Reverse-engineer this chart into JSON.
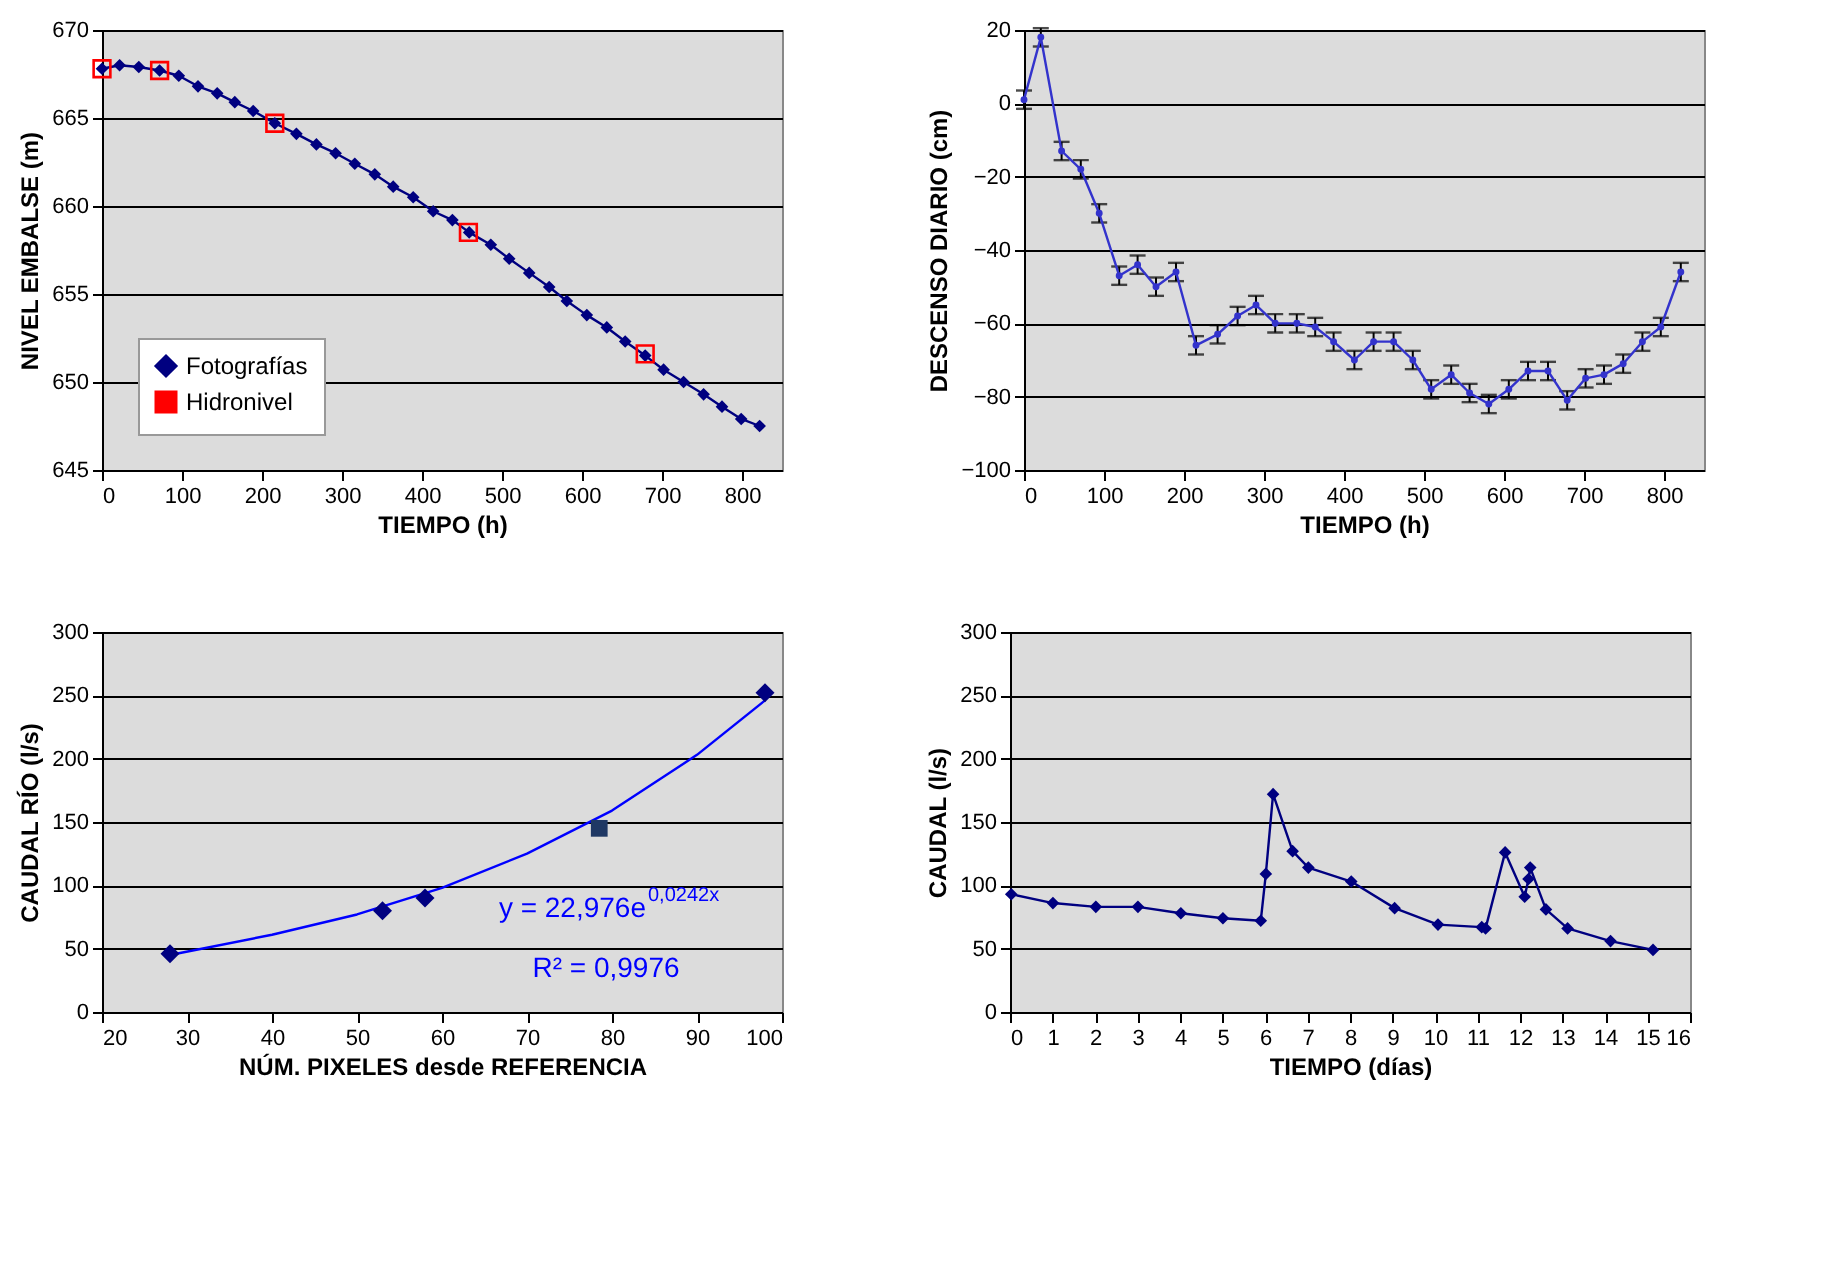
{
  "chart_data": [
    {
      "type": "line",
      "xlabel": "TIEMPO (h)",
      "ylabel": "NIVEL EMBALSE (m)",
      "xlim": [
        0,
        850
      ],
      "xticks": [
        0,
        100,
        200,
        300,
        400,
        500,
        600,
        700,
        800
      ],
      "ylim": [
        645,
        670
      ],
      "yticks": [
        645,
        650,
        655,
        660,
        665,
        670
      ],
      "grid": "y",
      "legend": "bottom left",
      "series": [
        {
          "name": "Fotografías",
          "color": "#000080",
          "marker": "diamond",
          "x": [
            0,
            22,
            46,
            72,
            96,
            120,
            144,
            166,
            189,
            216,
            243,
            268,
            292,
            316,
            341,
            364,
            389,
            414,
            438,
            459,
            486,
            509,
            534,
            559,
            581,
            606,
            631,
            654,
            679,
            702,
            727,
            752,
            775,
            799,
            822
          ],
          "values": [
            667.8,
            668.0,
            667.9,
            667.7,
            667.4,
            666.8,
            666.4,
            665.9,
            665.4,
            664.7,
            664.1,
            663.5,
            663.0,
            662.4,
            661.8,
            661.1,
            660.5,
            659.7,
            659.2,
            658.5,
            657.8,
            657.0,
            656.2,
            655.4,
            654.6,
            653.8,
            653.1,
            652.3,
            651.5,
            650.7,
            650.0,
            649.3,
            648.6,
            647.9,
            647.5
          ]
        },
        {
          "name": "Hidronivel",
          "type": "scatter",
          "color": "#ff0000",
          "marker": "square",
          "x": [
            0,
            72,
            216,
            458,
            679
          ],
          "values": [
            667.8,
            667.7,
            664.7,
            658.5,
            651.6
          ]
        }
      ]
    },
    {
      "type": "line",
      "xlabel": "TIEMPO (h)",
      "ylabel": "DESCENSO DIARIO (cm)",
      "xlim": [
        0,
        850
      ],
      "xticks": [
        0,
        100,
        200,
        300,
        400,
        500,
        600,
        700,
        800
      ],
      "ylim": [
        -100,
        20
      ],
      "yticks": [
        -100,
        -80,
        -60,
        -40,
        -20,
        0,
        20
      ],
      "grid": "y",
      "series": [
        {
          "color": "#3333cc",
          "marker": "circle",
          "x": [
            0,
            21,
            47,
            71,
            94,
            119,
            142,
            165,
            190,
            215,
            242,
            267,
            290,
            314,
            341,
            364,
            387,
            413,
            437,
            462,
            486,
            509,
            534,
            557,
            581,
            606,
            630,
            655,
            679,
            702,
            725,
            749,
            773,
            796,
            821
          ],
          "values": [
            1,
            18,
            -13,
            -18,
            -30,
            -47,
            -44,
            -50,
            -46,
            -66,
            -63,
            -58,
            -55,
            -60,
            -60,
            -61,
            -65,
            -70,
            -65,
            -65,
            -70,
            -78,
            -74,
            -79,
            -82,
            -78,
            -73,
            -73,
            -81,
            -75,
            -74,
            -71,
            -65,
            -61,
            -46
          ],
          "errors": [
            2.5,
            2.5,
            2.5,
            2.5,
            2.5,
            2.5,
            2.5,
            2.5,
            2.5,
            2.5,
            2.5,
            2.5,
            2.5,
            2.5,
            2.5,
            2.5,
            2.5,
            2.5,
            2.5,
            2.5,
            2.5,
            2.5,
            2.5,
            2.5,
            2.5,
            2.5,
            2.5,
            2.5,
            2.5,
            2.5,
            2.5,
            2.5,
            2.5,
            2.5,
            2.5
          ]
        }
      ]
    },
    {
      "type": "scatter",
      "xlabel": "NÚM. PIXELES desde REFERENCIA",
      "ylabel": "CAUDAL RÍO (l/s)",
      "xlim": [
        20,
        100
      ],
      "xticks": [
        20,
        30,
        40,
        50,
        60,
        70,
        80,
        90,
        100
      ],
      "ylim": [
        0,
        300
      ],
      "yticks": [
        0,
        50,
        100,
        150,
        200,
        250,
        300
      ],
      "grid": "y",
      "annotations": [
        "y = 22,976e$^{0,0242x}$",
        "R² = 0,9976"
      ],
      "series": [
        {
          "type": "line",
          "color": "#0000ff",
          "marker": "none",
          "x": [
            28,
            40,
            50,
            60,
            70,
            80,
            90,
            98
          ],
          "values": [
            45,
            61,
            77,
            98,
            125,
            159,
            203,
            246
          ]
        },
        {
          "color": "#000080",
          "marker": "diamond",
          "x": [
            28,
            53,
            58,
            98
          ],
          "values": [
            46,
            80,
            90,
            252
          ]
        },
        {
          "color": "#1f3864",
          "marker": "square",
          "x": [
            78.5
          ],
          "values": [
            145
          ]
        }
      ]
    },
    {
      "type": "line",
      "xlabel": "TIEMPO (días)",
      "ylabel": "CAUDAL (l/s)",
      "xlim": [
        0,
        16
      ],
      "xticks": [
        0,
        1,
        2,
        3,
        4,
        5,
        6,
        7,
        8,
        9,
        10,
        11,
        12,
        13,
        14,
        15,
        16
      ],
      "ylim": [
        0,
        300
      ],
      "yticks": [
        0,
        50,
        100,
        150,
        200,
        250,
        300
      ],
      "grid": "y",
      "series": [
        {
          "color": "#000080",
          "marker": "diamond",
          "x": [
            0.03,
            1.01,
            2.02,
            3.01,
            4.02,
            5.01,
            5.9,
            6.02,
            6.19,
            6.65,
            7.02,
            8.03,
            9.05,
            10.07,
            11.1,
            11.19,
            11.65,
            12.11,
            12.2,
            12.24,
            12.61,
            13.12,
            14.13,
            15.13
          ],
          "values": [
            93,
            86,
            83,
            83,
            78,
            74,
            72,
            109,
            172,
            127,
            114,
            103,
            82,
            69,
            67,
            66,
            126,
            91,
            105,
            114,
            81,
            66,
            56,
            49
          ]
        }
      ]
    }
  ]
}
